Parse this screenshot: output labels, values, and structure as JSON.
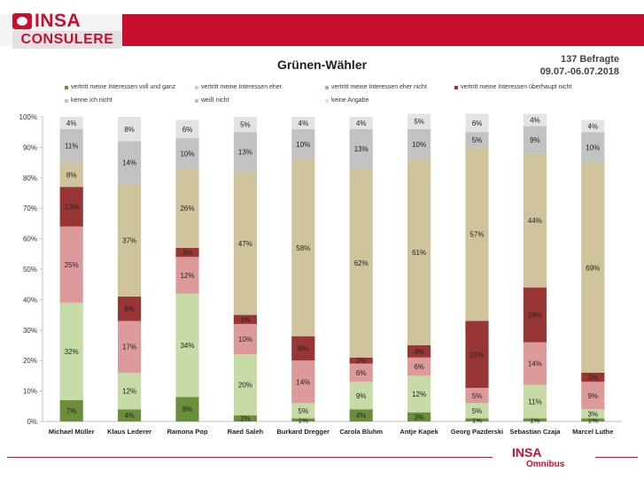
{
  "header": {
    "logo_top": "INSA",
    "logo_bottom": "CONSULERE",
    "respondents": "137 Befragte",
    "period": "09.07.-06.07.2018"
  },
  "footer": {
    "logo_top": "INSA",
    "logo_bottom": "Omnibus"
  },
  "colors": {
    "brand_red": "#c8102e"
  },
  "chart_data": {
    "type": "bar",
    "stacked": true,
    "title": "Grünen-Wähler",
    "xlabel": "",
    "ylabel": "",
    "ylim": [
      0,
      100
    ],
    "y_ticks": [
      "0%",
      "10%",
      "20%",
      "30%",
      "40%",
      "50%",
      "60%",
      "70%",
      "80%",
      "90%",
      "100%"
    ],
    "legend_position": "top",
    "categories": [
      "Michael Müller",
      "Klaus Lederer",
      "Ramona Pop",
      "Raed Saleh",
      "Burkard Dregger",
      "Carola Bluhm",
      "Antje Kapek",
      "Georg Pazderski",
      "Sebastian Czaja",
      "Marcel Luthe"
    ],
    "series": [
      {
        "name": "vertritt meine Interessen voll und ganz",
        "color": "#6b8e3a",
        "values": [
          7,
          4,
          8,
          2,
          1,
          4,
          3,
          1,
          1,
          1
        ],
        "labels": [
          "7%",
          "4%",
          "8%",
          "2%",
          "1%",
          "4%",
          "3%",
          "1%",
          "1%",
          "1%"
        ]
      },
      {
        "name": "vertritt meine Interessen eher",
        "color": "#c6dba6",
        "values": [
          32,
          12,
          34,
          20,
          5,
          9,
          12,
          5,
          11,
          3
        ],
        "labels": [
          "32%",
          "12%",
          "34%",
          "20%",
          "5%",
          "9%",
          "12%",
          "5%",
          "11%",
          "3%"
        ]
      },
      {
        "name": "vertritt meine Interessen eher nicht",
        "color": "#dd9a9a",
        "values": [
          25,
          17,
          12,
          10,
          14,
          6,
          6,
          5,
          14,
          9
        ],
        "labels": [
          "25%",
          "17%",
          "12%",
          "10%",
          "14%",
          "6%",
          "6%",
          "5%",
          "14%",
          "9%"
        ]
      },
      {
        "name": "vertritt meine Interessen überhaupt nicht",
        "color": "#983535",
        "values": [
          13,
          8,
          3,
          3,
          8,
          2,
          4,
          22,
          18,
          3
        ],
        "labels": [
          "13%",
          "8%",
          "3%",
          "3%",
          "8%",
          "2%",
          "4%",
          "22%",
          "18%",
          "3%"
        ]
      },
      {
        "name": "kenne ich nicht",
        "color": "#cfc39c",
        "values": [
          8,
          37,
          26,
          47,
          58,
          62,
          61,
          57,
          44,
          69
        ],
        "labels": [
          "8%",
          "37%",
          "26%",
          "47%",
          "58%",
          "62%",
          "61%",
          "57%",
          "44%",
          "69%"
        ]
      },
      {
        "name": "weiß nicht",
        "color": "#c2c2c2",
        "values": [
          11,
          14,
          10,
          13,
          10,
          13,
          10,
          5,
          9,
          10
        ],
        "labels": [
          "11%",
          "14%",
          "10%",
          "13%",
          "10%",
          "13%",
          "10%",
          "5%",
          "9%",
          "10%"
        ]
      },
      {
        "name": "keine Angabe",
        "color": "#e3e3e3",
        "values": [
          4,
          8,
          6,
          5,
          4,
          4,
          5,
          6,
          4,
          4
        ],
        "labels": [
          "4%",
          "8%",
          "6%",
          "5%",
          "4%",
          "4%",
          "5%",
          "6%",
          "4%",
          "4%"
        ]
      }
    ]
  }
}
